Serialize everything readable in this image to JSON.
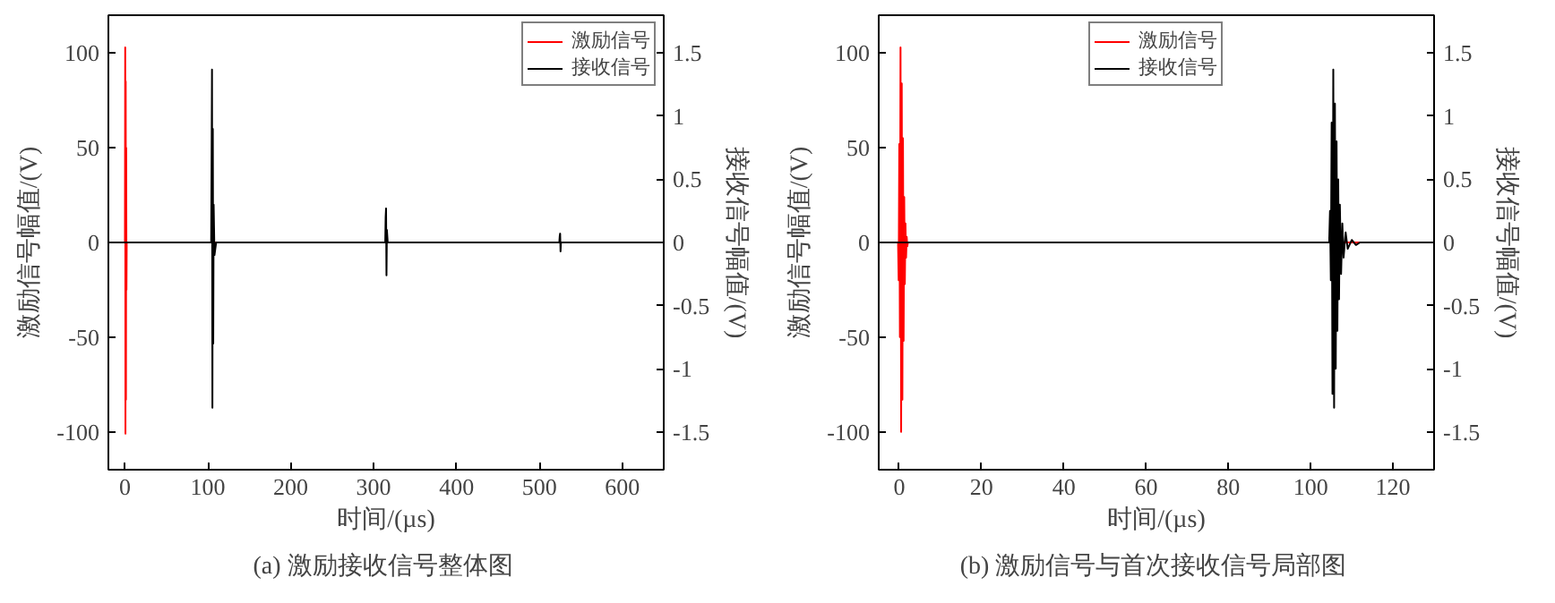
{
  "chart_data": [
    {
      "type": "line",
      "xlabel": "时间/(µs)",
      "ylabel": "激励信号幅值/(V)",
      "y2label": "接收信号幅值/(V)",
      "xlim": [
        -20,
        650
      ],
      "xticks": [
        0,
        100,
        200,
        300,
        400,
        500,
        600
      ],
      "ylim": [
        -120,
        120
      ],
      "yticks": [
        -100,
        -50,
        0,
        50,
        100
      ],
      "y2lim": [
        -1.8,
        1.8
      ],
      "y2ticks": [
        -1.5,
        -1,
        -0.5,
        0,
        0.5,
        1,
        1.5
      ],
      "legend": "top right",
      "grid": false,
      "annotations": [
        "(a)  激励接收信号整体图"
      ],
      "series": [
        {
          "name": "激励信号",
          "color": "#ff0000",
          "x": [
            -20,
            0,
            0.3,
            0.6,
            0.9,
            1.2,
            1.5,
            1.8,
            2.1,
            650
          ],
          "values": [
            0,
            0,
            103,
            -101,
            85,
            -83,
            50,
            -25,
            0,
            0
          ]
        },
        {
          "name": "接收信号",
          "color": "#000000",
          "axis": "y2",
          "x": [
            -20,
            104,
            104.5,
            105,
            105.5,
            106,
            106.5,
            107,
            108,
            110,
            314,
            314.5,
            315,
            315.5,
            316,
            317,
            524,
            524.5,
            525,
            525.5,
            526,
            650
          ],
          "values": [
            0,
            0,
            0.6,
            1.37,
            -1.31,
            0.9,
            -0.8,
            0.3,
            -0.1,
            0,
            0,
            0.2,
            0.27,
            -0.26,
            0.1,
            0,
            0,
            0.05,
            0.07,
            -0.07,
            0,
            0
          ]
        }
      ]
    },
    {
      "type": "line",
      "xlabel": "时间/(µs)",
      "ylabel": "激励信号幅值/(V)",
      "y2label": "接收信号幅值/(V)",
      "xlim": [
        -5,
        130
      ],
      "xticks": [
        0,
        20,
        40,
        60,
        80,
        100,
        120
      ],
      "ylim": [
        -120,
        120
      ],
      "yticks": [
        -100,
        -50,
        0,
        50,
        100
      ],
      "y2lim": [
        -1.8,
        1.8
      ],
      "y2ticks": [
        -1.5,
        -1,
        -0.5,
        0,
        0.5,
        1,
        1.5
      ],
      "legend": "top",
      "grid": false,
      "annotations": [
        "(b)  激励信号与首次接收信号局部图"
      ],
      "series": [
        {
          "name": "激励信号",
          "color": "#ff0000",
          "x": [
            -5,
            -0.3,
            -0.15,
            0,
            0.15,
            0.3,
            0.45,
            0.6,
            0.75,
            0.9,
            1.05,
            1.2,
            1.35,
            1.5,
            1.65,
            1.8,
            1.95,
            2.1,
            130
          ],
          "values": [
            0,
            0,
            -20,
            52,
            -50,
            103,
            -100,
            84,
            -83,
            55,
            -52,
            24,
            -22,
            10,
            -8,
            3,
            -2,
            0,
            0
          ]
        },
        {
          "name": "接收信号",
          "color": "#000000",
          "axis": "y2",
          "x": [
            -5,
            104.5,
            104.7,
            104.9,
            105.1,
            105.3,
            105.5,
            105.7,
            105.9,
            106.1,
            106.3,
            106.5,
            106.7,
            106.9,
            107.1,
            107.4,
            107.7,
            108,
            108.5,
            109,
            110,
            111,
            112,
            130
          ],
          "values": [
            0,
            0,
            0.25,
            -0.3,
            0.95,
            -1.2,
            1.37,
            -1.31,
            1.1,
            -1.0,
            0.8,
            -0.7,
            0.5,
            -0.45,
            0.3,
            -0.25,
            0.15,
            -0.12,
            0.08,
            -0.05,
            0.02,
            -0.02,
            0,
            0
          ]
        }
      ]
    }
  ]
}
